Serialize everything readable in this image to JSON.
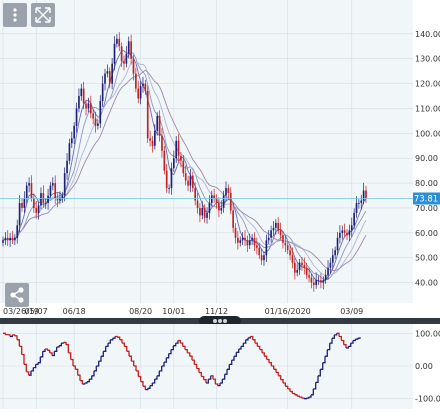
{
  "toolbar": {
    "menu_icon": "vertical-dots-icon",
    "expand_icon": "expand-arrows-icon",
    "share_icon": "share-icon"
  },
  "colors": {
    "up": "#1c1f7a",
    "down": "#c21f1f",
    "ma_colors": [
      "#6a6fb0",
      "#8f95c4",
      "#b0b5d6",
      "#9e88b0"
    ],
    "current_price_line": "#6cc7e8",
    "current_price_label_bg": "#2b8fd6",
    "grid": "#d5dde3",
    "plot_bg": "#f1f6f9"
  },
  "price": {
    "current_label": "73.81",
    "current_value": 73.81,
    "y_ticks": [
      "140.00",
      "130.00",
      "120.00",
      "110.00",
      "100.00",
      "90.00",
      "80.00",
      "70.00",
      "60.00",
      "50.00",
      "40.00"
    ],
    "x_ticks": [
      "03/26/19",
      "05/07",
      "06/18",
      "08/20",
      "10/01",
      "11/12",
      "01/16/2020",
      "03/09"
    ]
  },
  "oscillator": {
    "y_ticks": [
      "100.00",
      "0.00",
      "-100.00"
    ]
  },
  "chart_data": [
    {
      "type": "candlestick",
      "x_ticks": [
        "03/26/19",
        "05/07",
        "06/18",
        "08/20",
        "10/01",
        "11/12",
        "01/16/2020",
        "03/09"
      ],
      "ylim": [
        33,
        152
      ],
      "y_ticks": [
        140,
        130,
        120,
        110,
        100,
        90,
        80,
        70,
        60,
        50,
        40
      ],
      "grid": true,
      "last_price": 73.81,
      "moving_averages": 4,
      "series": [
        {
          "values": [
            57,
            58,
            57,
            58,
            57,
            58,
            63,
            72,
            70,
            74,
            79,
            80,
            74,
            70,
            68,
            71,
            76,
            72,
            72,
            75,
            79,
            80,
            74,
            73,
            74,
            75,
            84,
            89,
            96,
            98,
            103,
            110,
            115,
            118,
            112,
            110,
            112,
            108,
            106,
            103,
            104,
            113,
            120,
            124,
            125,
            120,
            128,
            136,
            138,
            135,
            129,
            128,
            132,
            137,
            130,
            124,
            118,
            114,
            119,
            120,
            117,
            98,
            97,
            95,
            101,
            107,
            99,
            93,
            85,
            78,
            78,
            86,
            90,
            97,
            91,
            89,
            84,
            81,
            79,
            83,
            78,
            73,
            70,
            67,
            70,
            66,
            68,
            72,
            75,
            74,
            72,
            69,
            70,
            75,
            78,
            76,
            69,
            62,
            58,
            56,
            57,
            58,
            57,
            55,
            57,
            58,
            55,
            54,
            51,
            49,
            51,
            57,
            58,
            61,
            62,
            64,
            61,
            59,
            56,
            55,
            53,
            51,
            48,
            44,
            45,
            48,
            47,
            46,
            43,
            42,
            40,
            39,
            41,
            41,
            40,
            41,
            43,
            46,
            48,
            51,
            53,
            58,
            60,
            61,
            60,
            59,
            61,
            63,
            68,
            72,
            72,
            73,
            77,
            74
          ]
        }
      ]
    },
    {
      "type": "line",
      "ylim": [
        -110,
        110
      ],
      "y_ticks": [
        100,
        0,
        -100
      ],
      "series": [
        {
          "values": [
            100,
            96,
            95,
            90,
            95,
            92,
            80,
            60,
            35,
            5,
            -18,
            -28,
            -15,
            -5,
            5,
            10,
            28,
            45,
            52,
            48,
            40,
            32,
            45,
            58,
            62,
            70,
            72,
            65,
            40,
            20,
            0,
            -10,
            -28,
            -45,
            -55,
            -52,
            -48,
            -40,
            -30,
            -15,
            0,
            15,
            30,
            45,
            60,
            70,
            80,
            85,
            90,
            88,
            80,
            70,
            60,
            45,
            30,
            15,
            0,
            -15,
            -32,
            -48,
            -62,
            -72,
            -68,
            -60,
            -52,
            -40,
            -30,
            -15,
            0,
            12,
            25,
            38,
            50,
            62,
            70,
            78,
            70,
            60,
            50,
            40,
            30,
            18,
            5,
            -8,
            -20,
            -32,
            -42,
            -52,
            -40,
            -30,
            -40,
            -55,
            -60,
            -52,
            -40,
            -25,
            -10,
            5,
            18,
            30,
            42,
            52,
            60,
            70,
            80,
            86,
            90,
            80,
            70,
            60,
            50,
            40,
            30,
            20,
            10,
            0,
            -10,
            -20,
            -30,
            -42,
            -52,
            -62,
            -70,
            -78,
            -84,
            -88,
            -92,
            -95,
            -98,
            -100,
            -98,
            -95,
            -88,
            -70,
            -50,
            -30,
            -10,
            10,
            30,
            50,
            70,
            85,
            95,
            100,
            90,
            78,
            65,
            55,
            60,
            70,
            78,
            82,
            85,
            88
          ]
        }
      ]
    }
  ]
}
